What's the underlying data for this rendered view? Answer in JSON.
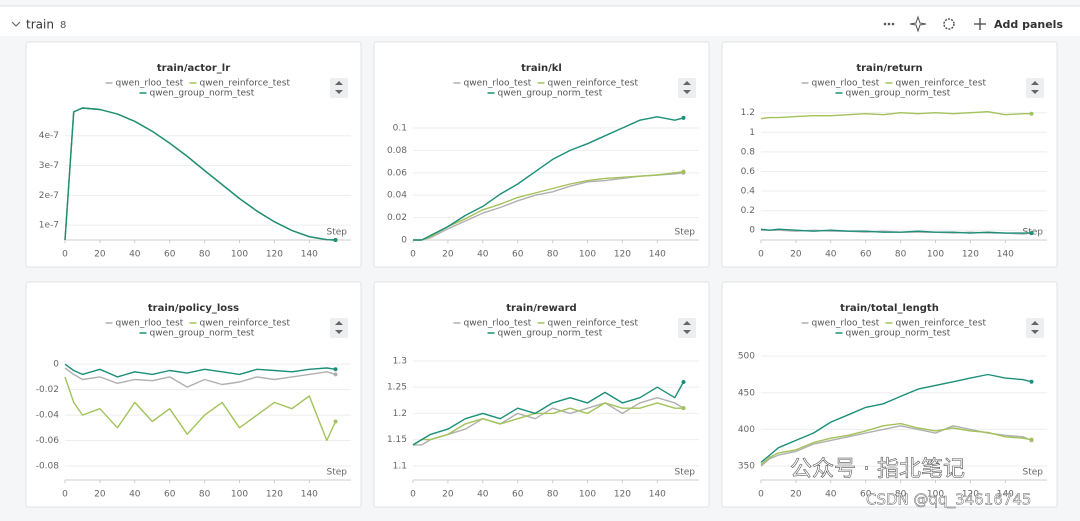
{
  "header": {
    "section": "train",
    "count": "8",
    "add_panels": "Add panels"
  },
  "watermark": {
    "line1": "公众号 · 指北笔记",
    "line2": "CSDN @qq_34616745"
  },
  "chart_data": [
    {
      "type": "line",
      "title": "train/actor_lr",
      "xlabel": "Step",
      "x": [
        0,
        5,
        10,
        20,
        30,
        40,
        50,
        60,
        70,
        80,
        90,
        100,
        110,
        120,
        130,
        140,
        150,
        155
      ],
      "xlim": [
        0,
        157
      ],
      "xticks": [
        0,
        20,
        40,
        60,
        80,
        100,
        120,
        140
      ],
      "ylim": [
        5e-08,
        5.2e-07
      ],
      "yticks": [
        1e-07,
        2e-07,
        3e-07,
        4e-07
      ],
      "grid": true,
      "series": [
        {
          "name": "qwen_rloo_test",
          "color": "#b0b0b0",
          "values": [
            5e-08,
            4.8e-07,
            4.93e-07,
            4.88e-07,
            4.73e-07,
            4.48e-07,
            4.15e-07,
            3.75e-07,
            3.31e-07,
            2.83e-07,
            2.36e-07,
            1.89e-07,
            1.47e-07,
            1.11e-07,
            8.2e-08,
            6.1e-08,
            5.1e-08,
            5e-08
          ]
        },
        {
          "name": "qwen_reinforce_test",
          "color": "#a3c35a",
          "values": [
            5e-08,
            4.8e-07,
            4.93e-07,
            4.88e-07,
            4.73e-07,
            4.48e-07,
            4.15e-07,
            3.75e-07,
            3.31e-07,
            2.83e-07,
            2.36e-07,
            1.89e-07,
            1.47e-07,
            1.11e-07,
            8.2e-08,
            6.1e-08,
            5.1e-08,
            5e-08
          ]
        },
        {
          "name": "qwen_group_norm_test",
          "color": "#1b8f78",
          "values": [
            5e-08,
            4.8e-07,
            4.93e-07,
            4.88e-07,
            4.73e-07,
            4.48e-07,
            4.15e-07,
            3.75e-07,
            3.31e-07,
            2.83e-07,
            2.36e-07,
            1.89e-07,
            1.47e-07,
            1.11e-07,
            8.2e-08,
            6.1e-08,
            5.1e-08,
            5e-08
          ]
        }
      ]
    },
    {
      "type": "line",
      "title": "train/kl",
      "xlabel": "Step",
      "x": [
        0,
        5,
        10,
        20,
        30,
        40,
        50,
        60,
        70,
        80,
        90,
        100,
        110,
        120,
        130,
        140,
        150,
        155
      ],
      "xlim": [
        0,
        157
      ],
      "xticks": [
        0,
        20,
        40,
        60,
        80,
        100,
        120,
        140
      ],
      "ylim": [
        0,
        0.125
      ],
      "yticks": [
        0,
        0.02,
        0.04,
        0.06,
        0.08,
        0.1
      ],
      "grid": true,
      "series": [
        {
          "name": "qwen_rloo_test",
          "color": "#b0b0b0",
          "values": [
            0,
            0,
            0.002,
            0.01,
            0.017,
            0.024,
            0.029,
            0.035,
            0.04,
            0.043,
            0.048,
            0.052,
            0.053,
            0.055,
            0.057,
            0.058,
            0.059,
            0.06
          ]
        },
        {
          "name": "qwen_reinforce_test",
          "color": "#a3c35a",
          "values": [
            0,
            0,
            0.003,
            0.012,
            0.019,
            0.027,
            0.032,
            0.038,
            0.042,
            0.046,
            0.05,
            0.053,
            0.055,
            0.056,
            0.057,
            0.058,
            0.06,
            0.061
          ]
        },
        {
          "name": "qwen_group_norm_test",
          "color": "#1b8f78",
          "values": [
            0,
            0,
            0.004,
            0.012,
            0.022,
            0.03,
            0.041,
            0.05,
            0.061,
            0.072,
            0.08,
            0.086,
            0.093,
            0.1,
            0.107,
            0.11,
            0.107,
            0.109
          ]
        }
      ]
    },
    {
      "type": "line",
      "title": "train/return",
      "xlabel": "Step",
      "x": [
        0,
        5,
        10,
        20,
        30,
        40,
        50,
        60,
        70,
        80,
        90,
        100,
        110,
        120,
        130,
        140,
        150,
        155
      ],
      "xlim": [
        0,
        157
      ],
      "xticks": [
        0,
        20,
        40,
        60,
        80,
        100,
        120,
        140
      ],
      "ylim": [
        -0.1,
        1.33
      ],
      "yticks": [
        0,
        0.2,
        0.4,
        0.6,
        0.8,
        1,
        1.2
      ],
      "grid": true,
      "series": [
        {
          "name": "qwen_rloo_test",
          "color": "#b0b0b0",
          "values": [
            0,
            0,
            0,
            -0.01,
            0,
            -0.01,
            -0.01,
            -0.02,
            -0.01,
            -0.02,
            -0.02,
            -0.02,
            -0.03,
            -0.02,
            -0.03,
            -0.03,
            -0.04,
            -0.03
          ]
        },
        {
          "name": "qwen_reinforce_test",
          "color": "#a3c35a",
          "values": [
            1.14,
            1.15,
            1.15,
            1.16,
            1.17,
            1.17,
            1.18,
            1.19,
            1.18,
            1.2,
            1.19,
            1.2,
            1.19,
            1.2,
            1.21,
            1.18,
            1.19,
            1.19
          ]
        },
        {
          "name": "qwen_group_norm_test",
          "color": "#1b8f78",
          "values": [
            0.01,
            0,
            0.01,
            0,
            -0.01,
            0,
            -0.01,
            -0.01,
            -0.02,
            -0.02,
            -0.01,
            -0.02,
            -0.02,
            -0.03,
            -0.02,
            -0.03,
            -0.03,
            -0.03
          ]
        }
      ]
    },
    {
      "type": "line",
      "title": "train/policy_loss",
      "xlabel": "Step",
      "x": [
        0,
        5,
        10,
        20,
        30,
        40,
        50,
        60,
        70,
        80,
        90,
        100,
        110,
        120,
        130,
        140,
        150,
        155
      ],
      "xlim": [
        0,
        157
      ],
      "xticks": [
        0,
        20,
        40,
        60,
        80,
        100,
        120,
        140
      ],
      "ylim": [
        -0.091,
        0.019
      ],
      "yticks": [
        -0.08,
        -0.06,
        -0.04,
        -0.02,
        0
      ],
      "grid": true,
      "series": [
        {
          "name": "qwen_rloo_test",
          "color": "#b0b0b0",
          "values": [
            -0.003,
            -0.008,
            -0.012,
            -0.01,
            -0.015,
            -0.012,
            -0.013,
            -0.01,
            -0.018,
            -0.012,
            -0.016,
            -0.014,
            -0.01,
            -0.012,
            -0.01,
            -0.008,
            -0.006,
            -0.008
          ]
        },
        {
          "name": "qwen_reinforce_test",
          "color": "#a3c35a",
          "values": [
            -0.01,
            -0.03,
            -0.04,
            -0.035,
            -0.05,
            -0.03,
            -0.045,
            -0.035,
            -0.055,
            -0.04,
            -0.03,
            -0.05,
            -0.04,
            -0.03,
            -0.035,
            -0.025,
            -0.06,
            -0.045
          ]
        },
        {
          "name": "qwen_group_norm_test",
          "color": "#1b8f78",
          "values": [
            0,
            -0.005,
            -0.008,
            -0.004,
            -0.01,
            -0.006,
            -0.008,
            -0.005,
            -0.007,
            -0.004,
            -0.006,
            -0.008,
            -0.004,
            -0.005,
            -0.006,
            -0.004,
            -0.003,
            -0.004
          ]
        }
      ]
    },
    {
      "type": "line",
      "title": "train/reward",
      "xlabel": "Step",
      "x": [
        0,
        5,
        10,
        20,
        30,
        40,
        50,
        60,
        70,
        80,
        90,
        100,
        110,
        120,
        130,
        140,
        150,
        155
      ],
      "xlim": [
        0,
        157
      ],
      "xticks": [
        0,
        20,
        40,
        60,
        80,
        100,
        120,
        140
      ],
      "ylim": [
        1.073,
        1.34
      ],
      "yticks": [
        1.1,
        1.15,
        1.2,
        1.25,
        1.3
      ],
      "grid": true,
      "series": [
        {
          "name": "qwen_rloo_test",
          "color": "#b0b0b0",
          "values": [
            1.14,
            1.14,
            1.15,
            1.16,
            1.17,
            1.19,
            1.18,
            1.2,
            1.19,
            1.21,
            1.2,
            1.21,
            1.22,
            1.2,
            1.22,
            1.23,
            1.22,
            1.21
          ]
        },
        {
          "name": "qwen_reinforce_test",
          "color": "#a3c35a",
          "values": [
            1.14,
            1.15,
            1.15,
            1.16,
            1.18,
            1.19,
            1.18,
            1.19,
            1.2,
            1.2,
            1.21,
            1.2,
            1.22,
            1.21,
            1.21,
            1.22,
            1.21,
            1.21
          ]
        },
        {
          "name": "qwen_group_norm_test",
          "color": "#1b8f78",
          "values": [
            1.14,
            1.15,
            1.16,
            1.17,
            1.19,
            1.2,
            1.19,
            1.21,
            1.2,
            1.22,
            1.23,
            1.22,
            1.24,
            1.22,
            1.23,
            1.25,
            1.23,
            1.26
          ]
        }
      ]
    },
    {
      "type": "line",
      "title": "train/total_length",
      "xlabel": "Step",
      "x": [
        0,
        5,
        10,
        20,
        30,
        40,
        50,
        60,
        70,
        80,
        90,
        100,
        110,
        120,
        130,
        140,
        150,
        155
      ],
      "xlim": [
        0,
        157
      ],
      "xticks": [
        0,
        20,
        40,
        60,
        80,
        100,
        120,
        140
      ],
      "ylim": [
        331,
        522
      ],
      "yticks": [
        350,
        400,
        450,
        500
      ],
      "grid": true,
      "series": [
        {
          "name": "qwen_rloo_test",
          "color": "#b0b0b0",
          "values": [
            350,
            360,
            365,
            370,
            380,
            385,
            390,
            395,
            400,
            405,
            400,
            395,
            405,
            400,
            395,
            392,
            390,
            385
          ]
        },
        {
          "name": "qwen_reinforce_test",
          "color": "#a3c35a",
          "values": [
            352,
            362,
            368,
            372,
            382,
            388,
            392,
            398,
            405,
            408,
            402,
            398,
            402,
            398,
            396,
            390,
            388,
            386
          ]
        },
        {
          "name": "qwen_group_norm_test",
          "color": "#1b8f78",
          "values": [
            355,
            365,
            375,
            385,
            395,
            410,
            420,
            430,
            435,
            445,
            455,
            460,
            465,
            470,
            475,
            470,
            468,
            465
          ]
        }
      ]
    }
  ]
}
